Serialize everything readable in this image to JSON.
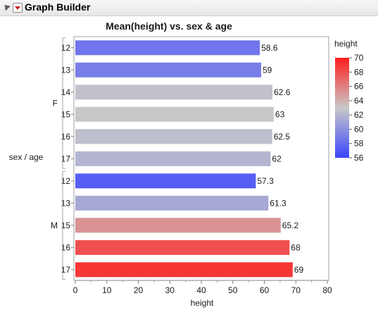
{
  "window": {
    "title": "Graph Builder"
  },
  "chart_data": {
    "type": "bar",
    "orientation": "horizontal",
    "title": "Mean(height) vs. sex & age",
    "xlabel": "height",
    "ylabel": "sex / age",
    "xlim": [
      0,
      80
    ],
    "xticks": [
      0,
      10,
      20,
      30,
      40,
      50,
      60,
      70,
      80
    ],
    "grid": false,
    "groups": [
      {
        "label": "F",
        "categories": [
          "12",
          "13",
          "14",
          "15",
          "16",
          "17"
        ],
        "values": [
          58.6,
          59,
          62.6,
          63,
          62.5,
          62
        ]
      },
      {
        "label": "M",
        "categories": [
          "12",
          "13",
          "15",
          "16",
          "17"
        ],
        "values": [
          57.3,
          61.3,
          65.2,
          68,
          69
        ]
      }
    ],
    "data_labels": [
      "58.6",
      "59",
      "62.6",
      "63",
      "62.5",
      "62",
      "57.3",
      "61.3",
      "65.2",
      "68",
      "69"
    ],
    "legend": {
      "title": "height",
      "placement": "right",
      "min": 56,
      "max": 70,
      "ticks": [
        56,
        58,
        60,
        62,
        64,
        66,
        68,
        70
      ],
      "color_low": "#3c46ff",
      "color_mid": "#c8c8c8",
      "color_high": "#ff1e1e"
    }
  }
}
